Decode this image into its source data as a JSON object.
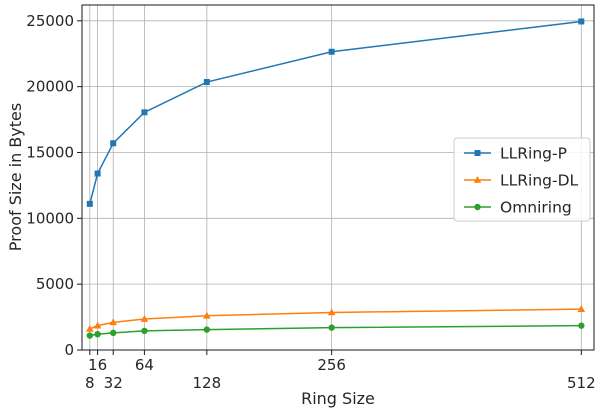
{
  "chart_data": {
    "type": "line",
    "title": "",
    "xlabel": "Ring Size",
    "ylabel": "Proof Size in Bytes",
    "x": [
      8,
      16,
      32,
      64,
      128,
      256,
      512
    ],
    "x_tick_labels": [
      "8",
      "16",
      "32",
      "64",
      "128",
      "256",
      "512"
    ],
    "y_ticks": [
      0,
      5000,
      10000,
      15000,
      20000,
      25000
    ],
    "xlim": [
      0,
      525
    ],
    "ylim": [
      0,
      26200
    ],
    "grid": true,
    "legend_position": "center-right",
    "series": [
      {
        "name": "LLRing-P",
        "marker": "square",
        "color": "#1f77b4",
        "values": [
          11100,
          13400,
          15700,
          18050,
          20350,
          22650,
          24950
        ]
      },
      {
        "name": "LLRing-DL",
        "marker": "triangle",
        "color": "#ff7f0e",
        "values": [
          1600,
          1850,
          2100,
          2350,
          2600,
          2850,
          3100
        ]
      },
      {
        "name": "Omniring",
        "marker": "circle",
        "color": "#2ca02c",
        "values": [
          1100,
          1200,
          1300,
          1450,
          1550,
          1700,
          1850
        ]
      }
    ]
  }
}
